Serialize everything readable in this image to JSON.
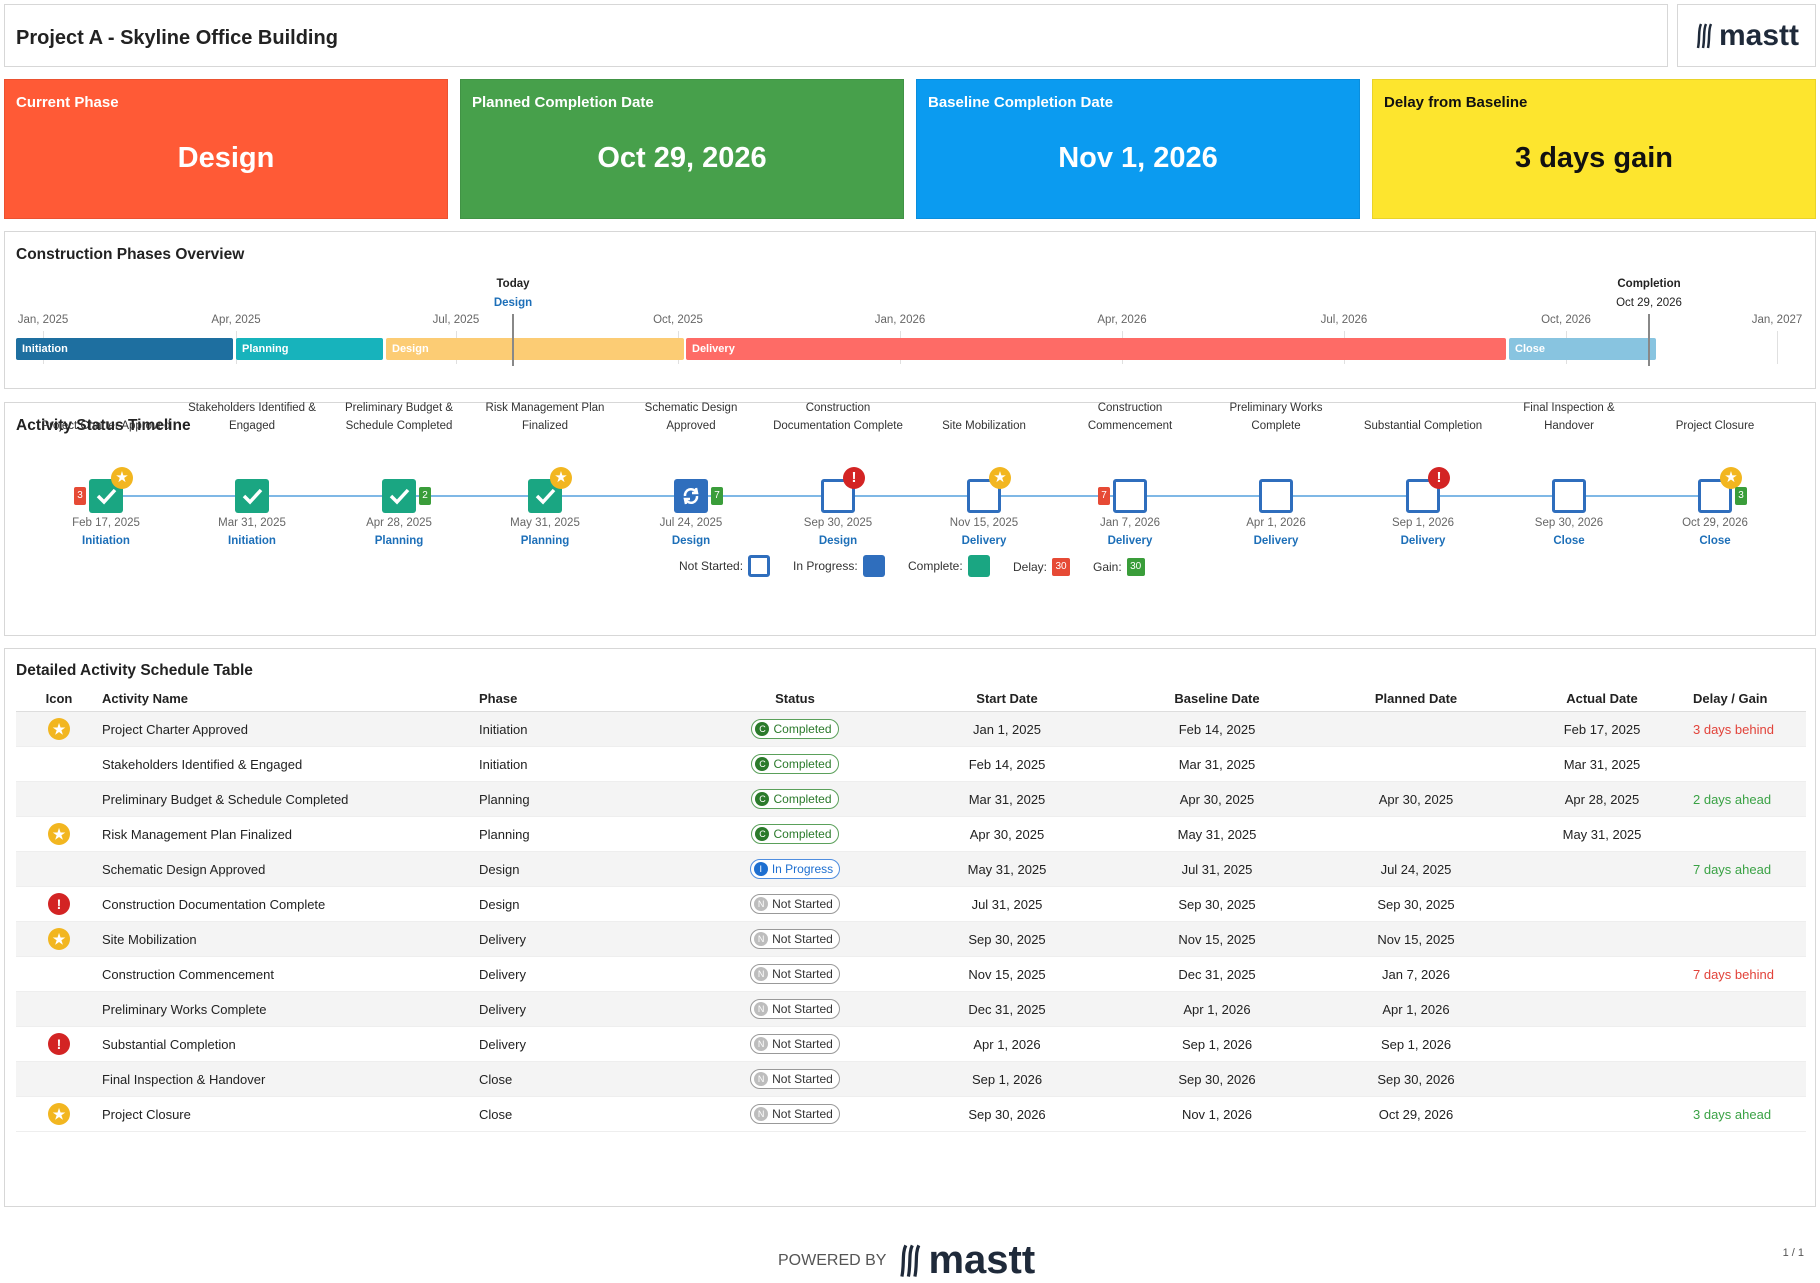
{
  "header": {
    "title": "Project A - Skyline Office Building",
    "logo_text": "mastt"
  },
  "kpis": [
    {
      "label": "Current Phase",
      "value": "Design",
      "color": "#ff5a36",
      "text_color": "#ffffff"
    },
    {
      "label": "Planned Completion Date",
      "value": "Oct 29, 2026",
      "color": "#47a04b",
      "text_color": "#ffffff"
    },
    {
      "label": "Baseline Completion Date",
      "value": "Nov 1, 2026",
      "color": "#0b9bf0",
      "text_color": "#ffffff"
    },
    {
      "label": "Delay from Baseline",
      "value": "3 days gain",
      "color": "#fde52e",
      "text_color": "#111111"
    }
  ],
  "phases_overview": {
    "title": "Construction Phases Overview",
    "today_label": "Today",
    "today_phase": "Design",
    "completion_label": "Completion",
    "completion_date": "Oct 29, 2026",
    "months": [
      "Jan, 2025",
      "Apr, 2025",
      "Jul, 2025",
      "Oct, 2025",
      "Jan, 2026",
      "Apr, 2026",
      "Jul, 2026",
      "Oct, 2026",
      "Jan, 2027"
    ],
    "phases": [
      {
        "name": "Initiation",
        "color": "#1e6fa0"
      },
      {
        "name": "Planning",
        "color": "#17b3bc"
      },
      {
        "name": "Design",
        "color": "#fccc74"
      },
      {
        "name": "Delivery",
        "color": "#fe6b66"
      },
      {
        "name": "Close",
        "color": "#88c4e0"
      }
    ]
  },
  "activity_timeline": {
    "title": "Activity Status Timeline",
    "activities": [
      {
        "name": "Project Charter Approved",
        "date": "Feb 17, 2025",
        "phase": "Initiation",
        "status": "done",
        "marker": "star",
        "chip": "3",
        "chip_type": "red"
      },
      {
        "name": "Stakeholders Identified & Engaged",
        "date": "Mar 31, 2025",
        "phase": "Initiation",
        "status": "done",
        "marker": "",
        "chip": "",
        "chip_type": ""
      },
      {
        "name": "Preliminary Budget & Schedule Completed",
        "date": "Apr 28, 2025",
        "phase": "Planning",
        "status": "done",
        "marker": "",
        "chip": "2",
        "chip_type": "green"
      },
      {
        "name": "Risk Management Plan Finalized",
        "date": "May 31, 2025",
        "phase": "Planning",
        "status": "done",
        "marker": "star",
        "chip": "",
        "chip_type": ""
      },
      {
        "name": "Schematic Design Approved",
        "date": "Jul 24, 2025",
        "phase": "Design",
        "status": "prog",
        "marker": "",
        "chip": "7",
        "chip_type": "green"
      },
      {
        "name": "Construction Documentation Complete",
        "date": "Sep 30, 2025",
        "phase": "Design",
        "status": "ns",
        "marker": "warn",
        "chip": "",
        "chip_type": ""
      },
      {
        "name": "Site Mobilization",
        "date": "Nov 15, 2025",
        "phase": "Delivery",
        "status": "ns",
        "marker": "star",
        "chip": "",
        "chip_type": ""
      },
      {
        "name": "Construction Commencement",
        "date": "Jan 7, 2026",
        "phase": "Delivery",
        "status": "ns",
        "marker": "",
        "chip": "7",
        "chip_type": "red"
      },
      {
        "name": "Preliminary Works Complete",
        "date": "Apr 1, 2026",
        "phase": "Delivery",
        "status": "ns",
        "marker": "",
        "chip": "",
        "chip_type": ""
      },
      {
        "name": "Substantial Completion",
        "date": "Sep 1, 2026",
        "phase": "Delivery",
        "status": "ns",
        "marker": "warn",
        "chip": "",
        "chip_type": ""
      },
      {
        "name": "Final Inspection & Handover",
        "date": "Sep 30, 2026",
        "phase": "Close",
        "status": "ns",
        "marker": "",
        "chip": "",
        "chip_type": ""
      },
      {
        "name": "Project Closure",
        "date": "Oct 29, 2026",
        "phase": "Close",
        "status": "ns",
        "marker": "star",
        "chip": "3",
        "chip_type": "green"
      }
    ],
    "legend": {
      "not_started": "Not Started:",
      "in_progress": "In Progress:",
      "complete": "Complete:",
      "delay": "Delay:",
      "delay_value": "30",
      "gain": "Gain:",
      "gain_value": "30"
    }
  },
  "table": {
    "title": "Detailed Activity Schedule Table",
    "columns": [
      "Icon",
      "Activity Name",
      "Phase",
      "Status",
      "Start Date",
      "Baseline Date",
      "Planned Date",
      "Actual Date",
      "Delay / Gain"
    ],
    "rows": [
      {
        "icon": "star",
        "name": "Project Charter Approved",
        "phase": "Initiation",
        "status": "Completed",
        "status_key": "done",
        "start": "Jan 1, 2025",
        "baseline": "Feb 14, 2025",
        "planned": "",
        "actual": "Feb 17, 2025",
        "delta": "3 days behind",
        "delta_type": "behind"
      },
      {
        "icon": "",
        "name": "Stakeholders Identified & Engaged",
        "phase": "Initiation",
        "status": "Completed",
        "status_key": "done",
        "start": "Feb 14, 2025",
        "baseline": "Mar 31, 2025",
        "planned": "",
        "actual": "Mar 31, 2025",
        "delta": "",
        "delta_type": ""
      },
      {
        "icon": "",
        "name": "Preliminary Budget & Schedule Completed",
        "phase": "Planning",
        "status": "Completed",
        "status_key": "done",
        "start": "Mar 31, 2025",
        "baseline": "Apr 30, 2025",
        "planned": "Apr 30, 2025",
        "actual": "Apr 28, 2025",
        "delta": "2 days ahead",
        "delta_type": "ahead"
      },
      {
        "icon": "star",
        "name": "Risk Management Plan Finalized",
        "phase": "Planning",
        "status": "Completed",
        "status_key": "done",
        "start": "Apr 30, 2025",
        "baseline": "May 31, 2025",
        "planned": "",
        "actual": "May 31, 2025",
        "delta": "",
        "delta_type": ""
      },
      {
        "icon": "",
        "name": "Schematic Design Approved",
        "phase": "Design",
        "status": "In Progress",
        "status_key": "prog",
        "start": "May 31, 2025",
        "baseline": "Jul 31, 2025",
        "planned": "Jul 24, 2025",
        "actual": "",
        "delta": "7 days ahead",
        "delta_type": "ahead"
      },
      {
        "icon": "warn",
        "name": "Construction Documentation Complete",
        "phase": "Design",
        "status": "Not Started",
        "status_key": "ns",
        "start": "Jul 31, 2025",
        "baseline": "Sep 30, 2025",
        "planned": "Sep 30, 2025",
        "actual": "",
        "delta": "",
        "delta_type": ""
      },
      {
        "icon": "star",
        "name": "Site Mobilization",
        "phase": "Delivery",
        "status": "Not Started",
        "status_key": "ns",
        "start": "Sep 30, 2025",
        "baseline": "Nov 15, 2025",
        "planned": "Nov 15, 2025",
        "actual": "",
        "delta": "",
        "delta_type": ""
      },
      {
        "icon": "",
        "name": "Construction Commencement",
        "phase": "Delivery",
        "status": "Not Started",
        "status_key": "ns",
        "start": "Nov 15, 2025",
        "baseline": "Dec 31, 2025",
        "planned": "Jan 7, 2026",
        "actual": "",
        "delta": "7 days behind",
        "delta_type": "behind"
      },
      {
        "icon": "",
        "name": "Preliminary Works Complete",
        "phase": "Delivery",
        "status": "Not Started",
        "status_key": "ns",
        "start": "Dec 31, 2025",
        "baseline": "Apr 1, 2026",
        "planned": "Apr 1, 2026",
        "actual": "",
        "delta": "",
        "delta_type": ""
      },
      {
        "icon": "warn",
        "name": "Substantial Completion",
        "phase": "Delivery",
        "status": "Not Started",
        "status_key": "ns",
        "start": "Apr 1, 2026",
        "baseline": "Sep 1, 2026",
        "planned": "Sep 1, 2026",
        "actual": "",
        "delta": "",
        "delta_type": ""
      },
      {
        "icon": "",
        "name": "Final Inspection & Handover",
        "phase": "Close",
        "status": "Not Started",
        "status_key": "ns",
        "start": "Sep 1, 2026",
        "baseline": "Sep 30, 2026",
        "planned": "Sep 30, 2026",
        "actual": "",
        "delta": "",
        "delta_type": ""
      },
      {
        "icon": "star",
        "name": "Project Closure",
        "phase": "Close",
        "status": "Not Started",
        "status_key": "ns",
        "start": "Sep 30, 2026",
        "baseline": "Nov 1, 2026",
        "planned": "Oct 29, 2026",
        "actual": "",
        "delta": "3 days ahead",
        "delta_type": "ahead"
      }
    ]
  },
  "footer": {
    "powered_by": "POWERED BY",
    "logo_text": "mastt",
    "page": "1 / 1"
  }
}
